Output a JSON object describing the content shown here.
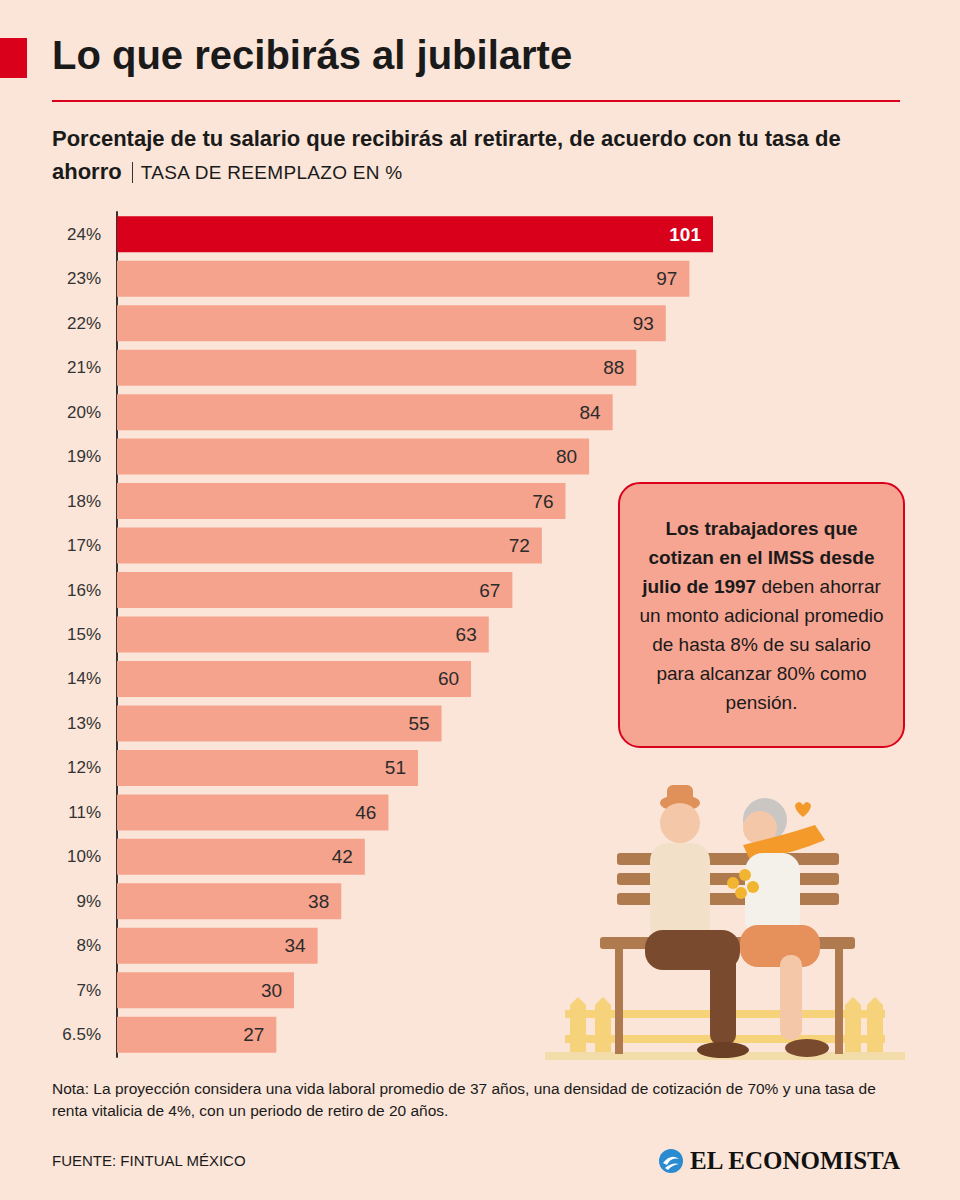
{
  "chart_data": {
    "type": "bar",
    "orientation": "horizontal",
    "title": "Lo que recibirás al jubilarte",
    "subtitle": "Porcentaje de tu salario que recibirás al retirarte, de acuerdo con tu tasa de ahorro",
    "xlabel": "TASA DE REEMPLAZO EN %",
    "categories": [
      "24%",
      "23%",
      "22%",
      "21%",
      "20%",
      "19%",
      "18%",
      "17%",
      "16%",
      "15%",
      "14%",
      "13%",
      "12%",
      "11%",
      "10%",
      "9%",
      "8%",
      "7%",
      "6.5%"
    ],
    "values": [
      101,
      97,
      93,
      88,
      84,
      80,
      76,
      72,
      67,
      63,
      60,
      55,
      51,
      46,
      42,
      38,
      34,
      30,
      27
    ],
    "colors": [
      "#d9001b",
      "#f6a38d",
      "#f6a38d",
      "#f6a38d",
      "#f6a38d",
      "#f6a38d",
      "#f6a38d",
      "#f6a38d",
      "#f6a38d",
      "#f6a38d",
      "#f6a38d",
      "#f6a38d",
      "#f6a38d",
      "#f6a38d",
      "#f6a38d",
      "#f6a38d",
      "#f6a38d",
      "#f6a38d",
      "#f6a38d"
    ],
    "data_labels": true,
    "tick_labels": "y",
    "grid": false,
    "annotation": [
      "Los trabajadores que cotizan en el IMSS desde julio de 1997",
      "deben ahorrar un monto adicional promedio de hasta 8% de su salario para alcanzar 80% como pensión."
    ],
    "note": "Nota: La proyección considera una vida laboral promedio de 37 años, una densidad de cotización de 70% y una tasa de renta vitalicia de 4%, con un periodo de retiro de 20 años.",
    "source": "FUENTE: FINTUAL MÉXICO",
    "brand": "EL ECONOMISTA"
  }
}
